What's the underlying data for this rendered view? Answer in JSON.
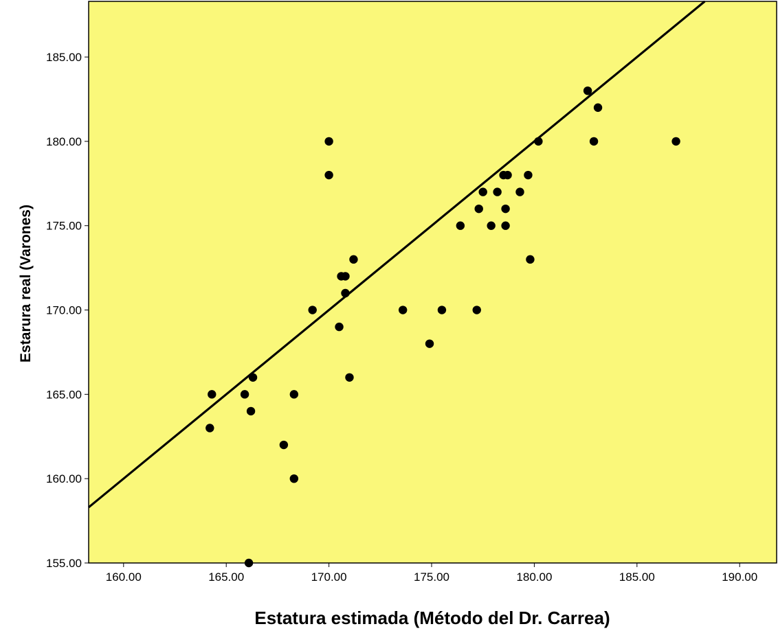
{
  "chart_data": {
    "type": "scatter",
    "title": "",
    "xlabel": "Estatura estimada (Método del Dr. Carrea)",
    "ylabel": "Estarura real (Varones)",
    "xlim": [
      158.3,
      191.8
    ],
    "ylim": [
      155.0,
      188.3
    ],
    "xticks": [
      160,
      165,
      170,
      175,
      180,
      185,
      190
    ],
    "yticks": [
      155,
      160,
      165,
      170,
      175,
      180,
      185
    ],
    "xtick_labels": [
      "160.00",
      "165.00",
      "170.00",
      "175.00",
      "180.00",
      "185.00",
      "190.00"
    ],
    "ytick_labels": [
      "155.00",
      "160.00",
      "165.00",
      "170.00",
      "175.00",
      "180.00",
      "185.00"
    ],
    "grid": false,
    "legend": "none",
    "colors": {
      "plot_background": "#FAF87A",
      "points": "#000000",
      "reference_line": "#000000"
    },
    "reference_line": {
      "kind": "identity",
      "slope": 1,
      "intercept": 0
    },
    "points": [
      {
        "x": 164.2,
        "y": 163
      },
      {
        "x": 164.3,
        "y": 165
      },
      {
        "x": 165.9,
        "y": 165
      },
      {
        "x": 166.1,
        "y": 155
      },
      {
        "x": 166.2,
        "y": 164
      },
      {
        "x": 166.3,
        "y": 166
      },
      {
        "x": 167.8,
        "y": 162
      },
      {
        "x": 168.3,
        "y": 165
      },
      {
        "x": 168.3,
        "y": 160
      },
      {
        "x": 169.2,
        "y": 170
      },
      {
        "x": 170.0,
        "y": 180
      },
      {
        "x": 170.0,
        "y": 178
      },
      {
        "x": 170.5,
        "y": 169
      },
      {
        "x": 170.6,
        "y": 172
      },
      {
        "x": 170.8,
        "y": 172
      },
      {
        "x": 170.8,
        "y": 171
      },
      {
        "x": 171.0,
        "y": 166
      },
      {
        "x": 171.2,
        "y": 173
      },
      {
        "x": 173.6,
        "y": 170
      },
      {
        "x": 174.9,
        "y": 168
      },
      {
        "x": 175.5,
        "y": 170
      },
      {
        "x": 176.4,
        "y": 175
      },
      {
        "x": 177.2,
        "y": 170
      },
      {
        "x": 177.3,
        "y": 176
      },
      {
        "x": 177.5,
        "y": 177
      },
      {
        "x": 177.9,
        "y": 175
      },
      {
        "x": 178.2,
        "y": 177
      },
      {
        "x": 178.5,
        "y": 178
      },
      {
        "x": 178.6,
        "y": 176
      },
      {
        "x": 178.6,
        "y": 175
      },
      {
        "x": 178.7,
        "y": 178
      },
      {
        "x": 179.3,
        "y": 177
      },
      {
        "x": 179.7,
        "y": 178
      },
      {
        "x": 179.8,
        "y": 173
      },
      {
        "x": 180.2,
        "y": 180
      },
      {
        "x": 182.6,
        "y": 183
      },
      {
        "x": 182.9,
        "y": 180
      },
      {
        "x": 183.1,
        "y": 182
      },
      {
        "x": 186.9,
        "y": 180
      }
    ]
  }
}
